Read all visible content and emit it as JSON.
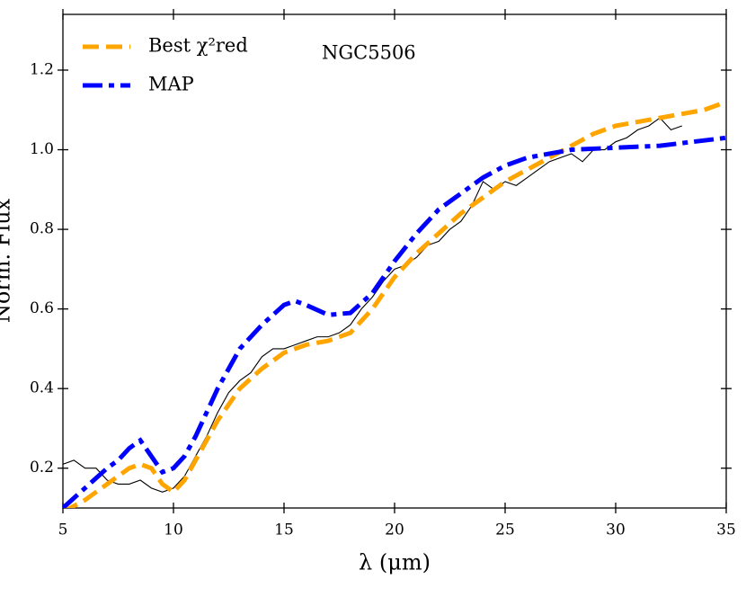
{
  "chart_data": {
    "type": "line",
    "annotation": "NGC5506",
    "x_label": "λ (μm)",
    "y_label": "Norm. Flux",
    "xlim": [
      5,
      35
    ],
    "ylim": [
      0.1,
      1.34
    ],
    "xticks": [
      5,
      10,
      15,
      20,
      25,
      30,
      35
    ],
    "yticks": [
      0.2,
      0.4,
      0.6,
      0.8,
      1.0,
      1.2
    ],
    "legend": "upper left",
    "series": [
      {
        "color": "#000000",
        "style": "solid",
        "x": [
          5,
          5.5,
          6,
          6.5,
          7,
          7.5,
          8,
          8.5,
          9,
          9.5,
          10,
          10.5,
          11,
          11.5,
          12,
          12.5,
          13,
          13.5,
          14,
          14.5,
          15,
          15.5,
          16,
          16.5,
          17,
          17.5,
          18,
          18.5,
          19,
          19.5,
          20,
          20.5,
          21,
          21.5,
          22,
          22.5,
          23,
          23.5,
          24,
          24.5,
          25,
          25.5,
          26,
          26.5,
          27,
          27.5,
          28,
          28.5,
          29,
          29.5,
          30,
          30.5,
          31,
          31.5,
          32,
          32.5,
          33
        ],
        "values": [
          0.21,
          0.22,
          0.2,
          0.2,
          0.17,
          0.16,
          0.16,
          0.17,
          0.15,
          0.14,
          0.15,
          0.18,
          0.23,
          0.28,
          0.34,
          0.39,
          0.42,
          0.44,
          0.48,
          0.5,
          0.5,
          0.51,
          0.52,
          0.53,
          0.53,
          0.54,
          0.56,
          0.6,
          0.63,
          0.67,
          0.7,
          0.71,
          0.73,
          0.76,
          0.77,
          0.8,
          0.82,
          0.86,
          0.92,
          0.9,
          0.92,
          0.91,
          0.93,
          0.95,
          0.97,
          0.98,
          0.99,
          0.97,
          1.0,
          1.0,
          1.02,
          1.03,
          1.05,
          1.06,
          1.08,
          1.05,
          1.06
        ]
      },
      {
        "name": "Best χ²red",
        "color": "#ffa500",
        "style": "dashed",
        "x": [
          5,
          6,
          7,
          8,
          8.5,
          9,
          9.5,
          10,
          10.5,
          11,
          12,
          13,
          14,
          15,
          16,
          17,
          18,
          19,
          20,
          21,
          22,
          23,
          24,
          25,
          26,
          27,
          28,
          29,
          30,
          31,
          32,
          33,
          34,
          35
        ],
        "values": [
          0.09,
          0.12,
          0.16,
          0.2,
          0.21,
          0.2,
          0.16,
          0.14,
          0.17,
          0.22,
          0.32,
          0.4,
          0.45,
          0.49,
          0.51,
          0.52,
          0.54,
          0.6,
          0.68,
          0.74,
          0.79,
          0.84,
          0.88,
          0.92,
          0.95,
          0.98,
          1.01,
          1.04,
          1.06,
          1.07,
          1.08,
          1.09,
          1.1,
          1.12
        ]
      },
      {
        "name": "MAP",
        "color": "#0000ff",
        "style": "dashdot",
        "x": [
          5,
          6,
          7,
          7.5,
          8,
          8.5,
          9,
          9.5,
          10,
          10.5,
          11,
          12,
          13,
          14,
          15,
          15.5,
          16,
          17,
          18,
          19,
          20,
          21,
          22,
          23,
          24,
          25,
          26,
          27,
          28,
          30,
          32,
          35
        ],
        "values": [
          0.1,
          0.15,
          0.2,
          0.22,
          0.25,
          0.27,
          0.23,
          0.19,
          0.2,
          0.23,
          0.28,
          0.4,
          0.5,
          0.56,
          0.61,
          0.62,
          0.61,
          0.585,
          0.59,
          0.64,
          0.72,
          0.79,
          0.85,
          0.89,
          0.93,
          0.96,
          0.98,
          0.99,
          1.0,
          1.005,
          1.01,
          1.03
        ]
      }
    ]
  }
}
